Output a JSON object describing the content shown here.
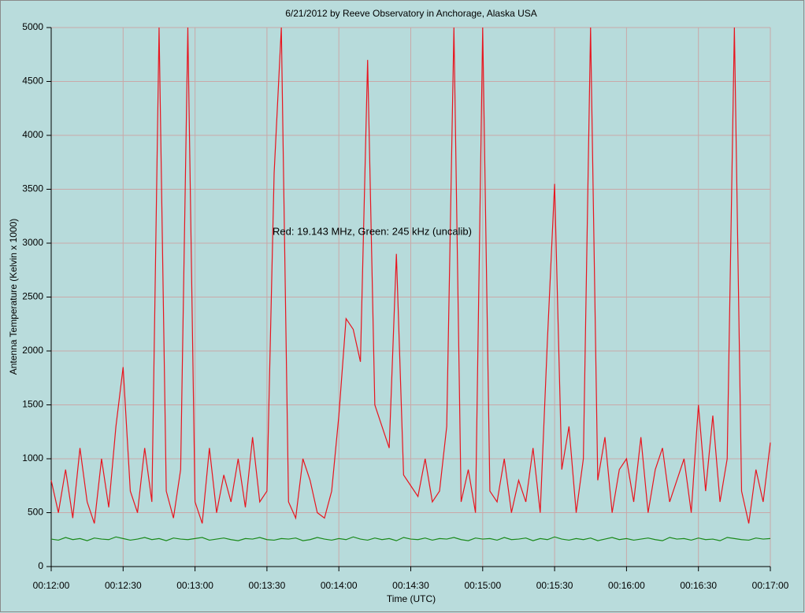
{
  "chart_data": {
    "type": "line",
    "title": "6/21/2012  by  Reeve Observatory  in  Anchorage, Alaska  USA",
    "annotation": "Red: 19.143 MHz, Green: 245 kHz (uncalib)",
    "xlabel": "Time (UTC)",
    "ylabel": "Antenna Temperature (Kelvin x 1000)",
    "x": [
      "00:12:00",
      "00:12:03",
      "00:12:06",
      "00:12:09",
      "00:12:12",
      "00:12:15",
      "00:12:18",
      "00:12:21",
      "00:12:24",
      "00:12:27",
      "00:12:30",
      "00:12:33",
      "00:12:36",
      "00:12:39",
      "00:12:42",
      "00:12:45",
      "00:12:48",
      "00:12:51",
      "00:12:54",
      "00:12:57",
      "00:13:00",
      "00:13:03",
      "00:13:06",
      "00:13:09",
      "00:13:12",
      "00:13:15",
      "00:13:18",
      "00:13:21",
      "00:13:24",
      "00:13:27",
      "00:13:30",
      "00:13:33",
      "00:13:36",
      "00:13:39",
      "00:13:42",
      "00:13:45",
      "00:13:48",
      "00:13:51",
      "00:13:54",
      "00:13:57",
      "00:14:00",
      "00:14:03",
      "00:14:06",
      "00:14:09",
      "00:14:12",
      "00:14:15",
      "00:14:18",
      "00:14:21",
      "00:14:24",
      "00:14:27",
      "00:14:30",
      "00:14:33",
      "00:14:36",
      "00:14:39",
      "00:14:42",
      "00:14:45",
      "00:14:48",
      "00:14:51",
      "00:14:54",
      "00:14:57",
      "00:15:00",
      "00:15:03",
      "00:15:06",
      "00:15:09",
      "00:15:12",
      "00:15:15",
      "00:15:18",
      "00:15:21",
      "00:15:24",
      "00:15:27",
      "00:15:30",
      "00:15:33",
      "00:15:36",
      "00:15:39",
      "00:15:42",
      "00:15:45",
      "00:15:48",
      "00:15:51",
      "00:15:54",
      "00:15:57",
      "00:16:00",
      "00:16:03",
      "00:16:06",
      "00:16:09",
      "00:16:12",
      "00:16:15",
      "00:16:18",
      "00:16:21",
      "00:16:24",
      "00:16:27",
      "00:16:30",
      "00:16:33",
      "00:16:36",
      "00:16:39",
      "00:16:42",
      "00:16:45",
      "00:16:48",
      "00:16:51",
      "00:16:54",
      "00:16:57",
      "00:17:00"
    ],
    "series": [
      {
        "color": "#e8141e",
        "values": [
          800,
          500,
          900,
          450,
          1100,
          600,
          400,
          1000,
          550,
          1300,
          1850,
          700,
          500,
          1100,
          600,
          5000,
          700,
          450,
          900,
          5000,
          600,
          400,
          1100,
          500,
          850,
          600,
          1000,
          550,
          1200,
          600,
          700,
          3650,
          5000,
          600,
          450,
          1000,
          800,
          500,
          450,
          700,
          1400,
          2300,
          2200,
          1900,
          4700,
          1500,
          1300,
          1100,
          2900,
          850,
          750,
          650,
          1000,
          600,
          700,
          1300,
          5000,
          600,
          900,
          500,
          5000,
          700,
          600,
          1000,
          500,
          800,
          600,
          1100,
          500,
          2100,
          3550,
          900,
          1300,
          500,
          1000,
          5000,
          800,
          1200,
          500,
          900,
          1000,
          600,
          1200,
          500,
          900,
          1100,
          600,
          800,
          1000,
          500,
          1500,
          700,
          1400,
          600,
          1000,
          5000,
          700,
          400,
          900,
          600,
          1150
        ]
      },
      {
        "color": "#1a8a1a",
        "values": [
          255,
          245,
          270,
          250,
          260,
          240,
          265,
          255,
          250,
          275,
          260,
          245,
          255,
          270,
          250,
          260,
          240,
          265,
          255,
          250,
          260,
          270,
          245,
          255,
          265,
          250,
          240,
          260,
          255,
          270,
          250,
          245,
          260,
          255,
          265,
          240,
          250,
          270,
          255,
          245,
          260,
          250,
          275,
          255,
          245,
          265,
          250,
          260,
          240,
          270,
          255,
          250,
          265,
          245,
          260,
          255,
          270,
          250,
          240,
          265,
          255,
          260,
          245,
          270,
          250,
          255,
          265,
          240,
          260,
          250,
          275,
          255,
          245,
          260,
          250,
          265,
          240,
          255,
          270,
          250,
          260,
          245,
          255,
          265,
          250,
          240,
          270,
          255,
          260,
          245,
          265,
          250,
          255,
          240,
          270,
          260,
          250,
          245,
          265,
          255,
          260
        ]
      }
    ],
    "xlim": [
      "00:12:00",
      "00:17:00"
    ],
    "xticks": [
      "00:12:00",
      "00:12:30",
      "00:13:00",
      "00:13:30",
      "00:14:00",
      "00:14:30",
      "00:15:00",
      "00:15:30",
      "00:16:00",
      "00:16:30",
      "00:17:00"
    ],
    "ylim": [
      0,
      5000
    ],
    "yticks": [
      0,
      500,
      1000,
      1500,
      2000,
      2500,
      3000,
      3500,
      4000,
      4500,
      5000
    ],
    "grid": true
  }
}
